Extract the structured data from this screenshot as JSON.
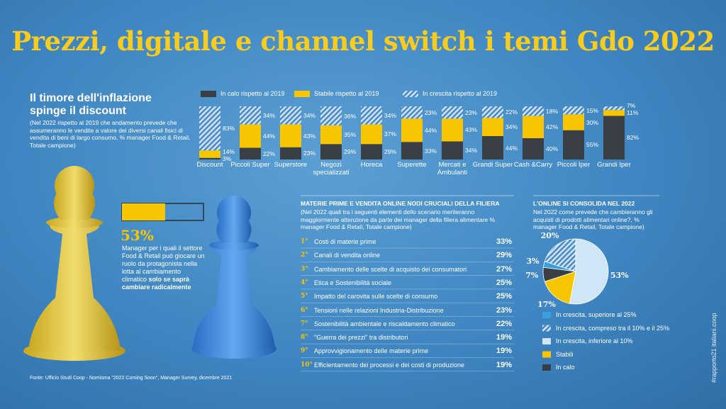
{
  "title": "Prezzi, digitale e channel switch i temi Gdo 2022",
  "source": "Fonte: Ufficio Studi Coop - Nomisma \"2022 Coming Soon\", Manager Survey, dicembre 2021",
  "side_note": "#rapporto21 italiani.coop",
  "chart_data": [
    {
      "type": "stacked_bar",
      "title": "Il timore dell'inflazione spinge il discount",
      "subtitle": "(Nel 2022 rispetto al 2019 che andamento prevede che assumeranno le vendite a valore dei diversi canali fisici di vendita di beni di largo consumo, % manager Food & Retail, Totale campione)",
      "categories": [
        "Discount",
        "Piccoli Super",
        "Superstore",
        "Negozi specializzati",
        "Horeca",
        "Superette",
        "Mercati e Ambulanti",
        "Grandi Super",
        "Cash &Carry",
        "Piccoli Iper",
        "Grandi Iper"
      ],
      "ylim": [
        0,
        100
      ],
      "series": [
        {
          "name": "In calo rispetto al 2019",
          "color": "#3a3f45",
          "values": [
            3,
            22,
            23,
            29,
            29,
            33,
            34,
            44,
            40,
            55,
            82
          ],
          "value_labels": [
            "3%",
            "22%",
            "23%",
            "29%",
            "29%",
            "33%",
            "34%",
            "44%",
            "40%",
            "55%",
            "82%"
          ]
        },
        {
          "name": "Stabile rispetto al 2019",
          "color": "#f7c600",
          "values": [
            14,
            44,
            43,
            35,
            37,
            44,
            43,
            34,
            42,
            30,
            11
          ],
          "value_labels": [
            "14%",
            "44%",
            "43%",
            "35%",
            "37%",
            "44%",
            "43%",
            "34%",
            "42%",
            "30%",
            "11%"
          ]
        },
        {
          "name": "In crescita rispetto al 2019",
          "color": "#b9d6ee",
          "pattern": "hatch",
          "values": [
            83,
            34,
            34,
            36,
            34,
            23,
            23,
            22,
            18,
            15,
            7
          ],
          "value_labels": [
            "83%",
            "34%",
            "34%",
            "36%",
            "34%",
            "23%",
            "23%",
            "22%",
            "18%",
            "15%",
            "7%"
          ]
        }
      ]
    },
    {
      "type": "progress",
      "value": 53,
      "value_label": "53%",
      "xlim": [
        0,
        100
      ],
      "color": "#f7c600",
      "text": "Manager per i quali il settore Food & Retail  può giocare un ruolo da protagonista nella lotta al cambiamento climatico",
      "text_bold": "solo se saprà cambiare radicalmente"
    },
    {
      "type": "pie",
      "title": "L'ONLINE SI CONSOLIDA NEL 2022",
      "subtitle": "Nel 2022 come prevede che cambieranno gli acquisti di prodotti alimentari online?, % manager Food & Retail, Totale campione)",
      "categories": [
        "In crescita, superiore al 25%",
        "In crescita, compreso tra il 10% e il 25%",
        "In crescita, inferiore al 10%",
        "Stabili",
        "In calo"
      ],
      "values": [
        3,
        20,
        53,
        17,
        7
      ],
      "value_labels": [
        "3%",
        "20%",
        "53%",
        "17%",
        "7%"
      ],
      "colors": [
        "#3a9fe2",
        "#cfe6f7",
        "#cfe6f7",
        "#f7c600",
        "#3a3f45"
      ],
      "patterns": [
        null,
        "hatch",
        null,
        null,
        null
      ]
    }
  ],
  "ranking": {
    "title": "MATERIE PRIME E VENDITA ONLINE NODI CRUCIALI DELLA FILIERA",
    "subtitle": "(Nel 2022 quali tra i seguenti elementi dello scenario meriteranno maggiormente attenzione da parte dei manager della filiera alimentare % manager Food & Retail, Totale campione)",
    "rows": [
      [
        "1°",
        "Costi di materie prime",
        "33%"
      ],
      [
        "2°",
        "Canali di vendita online",
        "29%"
      ],
      [
        "3°",
        "Cambiamento delle scelte di acquisto dei consumatori",
        "27%"
      ],
      [
        "4°",
        "Etica e Sostenibilità sociale",
        "25%"
      ],
      [
        "5°",
        "Impatto del carovita sulle scelte di consumo",
        "25%"
      ],
      [
        "6°",
        "Tensioni nelle relazioni Industria-Distribuzione",
        "23%"
      ],
      [
        "7°",
        "Sostenibilità ambientale e riscaldamento climatico",
        "22%"
      ],
      [
        "8°",
        "\"Guerra dei prezzi\" tra distributori",
        "19%"
      ],
      [
        "9°",
        "Approvvigionamento delle materie prime",
        "19%"
      ],
      [
        "10°",
        "Efficientamento dei processi e dei costi di produzione",
        "19%"
      ]
    ]
  }
}
